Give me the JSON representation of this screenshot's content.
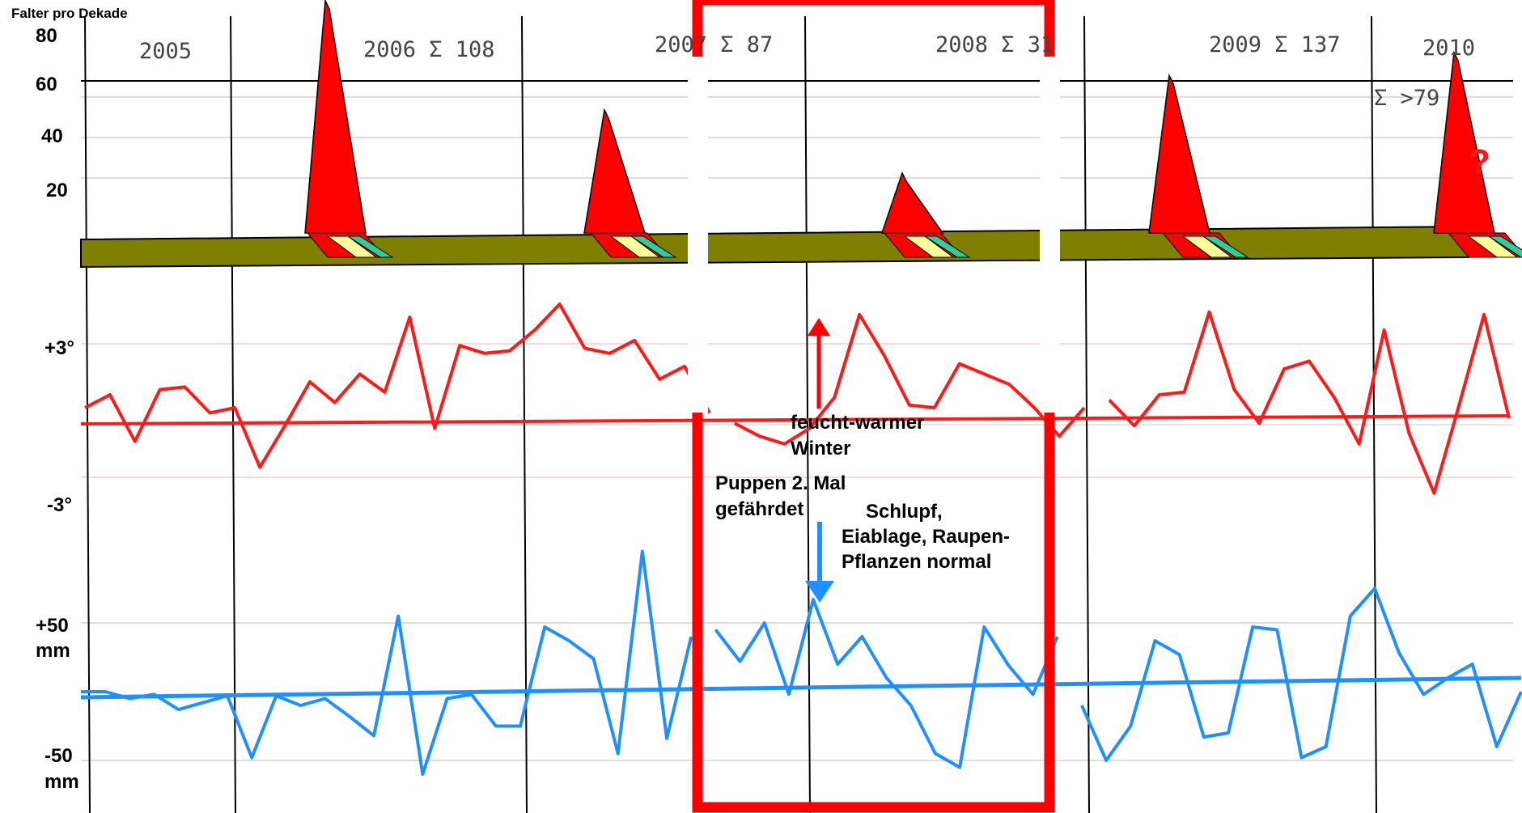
{
  "chart_data": {
    "type": "line",
    "title": "Falter pro Dekade",
    "y_ticks_falter": [
      "80",
      "60",
      "40",
      "20"
    ],
    "y_ticks_temp": [
      "+3°",
      "-3°"
    ],
    "y_ticks_rain": [
      "+50",
      "mm",
      "-50",
      "mm"
    ],
    "years": [
      {
        "label": "2005"
      },
      {
        "label": "2006 Σ 108"
      },
      {
        "label": "2007 Σ 87"
      },
      {
        "label": "2008 Σ 31"
      },
      {
        "label": "2009 Σ 137"
      },
      {
        "label": "2010"
      }
    ],
    "sum_2010": "Σ >79",
    "question_mark": "?",
    "annotations": {
      "winter": [
        "feucht-warmer",
        "Winter"
      ],
      "puppen": [
        "Puppen 2. Mal",
        "gefährdet"
      ],
      "schlupf": [
        "Schlupf,",
        "Eiablage, Raupen-",
        "Pflanzen normal"
      ]
    },
    "falter_peaks": [
      {
        "year": "2006",
        "peak": 80
      },
      {
        "year": "2007",
        "peak": 42
      },
      {
        "year": "2008",
        "peak": 20
      },
      {
        "year": "2009",
        "peak": 54
      },
      {
        "year": "2010",
        "peak": 62
      }
    ],
    "series": [
      {
        "name": "temperature",
        "color": "#ff1a1a",
        "values": [
          0.5,
          1.0,
          -0.8,
          1.2,
          1.3,
          0.3,
          0.5,
          -1.8,
          -0.2,
          1.5,
          0.7,
          1.8,
          1.1,
          4.0,
          -0.3,
          2.9,
          2.6,
          2.7,
          3.5,
          4.5,
          2.8,
          2.6,
          3.1,
          1.6,
          2.1,
          0.3,
          -0.1,
          -0.6,
          -0.9,
          -0.3,
          0.9,
          4.1,
          2.5,
          0.6,
          0.5,
          2.2,
          1.8,
          1.4,
          0.5,
          -0.6,
          0.5,
          0.8,
          -0.2,
          1.0,
          1.1,
          4.2,
          1.2,
          -0.1,
          2.0,
          2.3,
          0.9,
          -0.9,
          3.5,
          -0.5,
          -2.8,
          0.6,
          4.1,
          0.1
        ]
      },
      {
        "name": "precipitation",
        "color": "#1e90ff",
        "values": [
          0,
          0,
          -5,
          -2,
          -13,
          -8,
          -3,
          -48,
          -3,
          -10,
          -5,
          -18,
          -32,
          55,
          -60,
          -5,
          -2,
          -25,
          -25,
          47,
          37,
          24,
          -45,
          102,
          -34,
          40,
          45,
          22,
          50,
          -2,
          67,
          20,
          40,
          10,
          -10,
          -45,
          -55,
          47,
          19,
          -2,
          40,
          -10,
          -50,
          -25,
          37,
          27,
          -33,
          -30,
          47,
          45,
          -48,
          -40,
          55,
          75,
          28,
          -2,
          10,
          20,
          -40,
          0
        ]
      }
    ],
    "baseline_temp": 0,
    "baseline_rain": 0,
    "highlight_year": "2008"
  }
}
